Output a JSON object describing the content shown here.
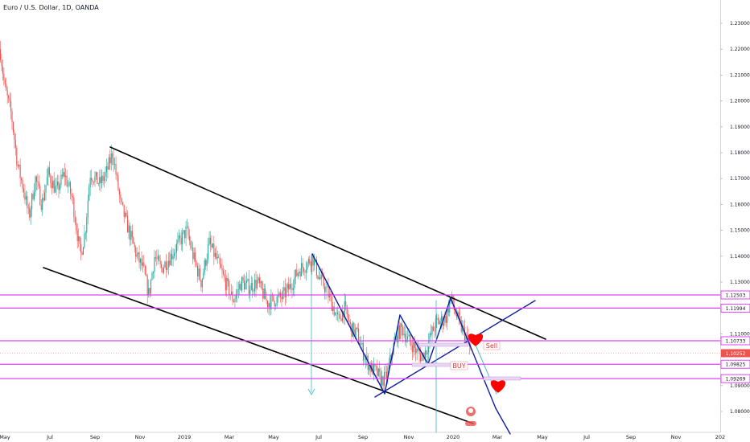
{
  "header": {
    "title": "Euro / U.S. Dollar, 1D, OANDA"
  },
  "chart_data": {
    "type": "candlestick",
    "symbol_label": "Euro / U.S. Dollar, 1D, OANDA",
    "price_axis": {
      "range": [
        1.075,
        1.235
      ],
      "ticks": [
        "1.23000",
        "1.22000",
        "1.21000",
        "1.20000",
        "1.19000",
        "1.18000",
        "1.17000",
        "1.16000",
        "1.15000",
        "1.14000",
        "1.13000",
        "1.11000",
        "1.09000",
        "1.08000"
      ],
      "tick_values": [
        1.23,
        1.22,
        1.21,
        1.2,
        1.19,
        1.18,
        1.17,
        1.16,
        1.15,
        1.14,
        1.13,
        1.11,
        1.09,
        1.08
      ]
    },
    "time_axis": {
      "labels": [
        "May",
        "Jul",
        "Sep",
        "Nov",
        "2019",
        "Mar",
        "May",
        "Jul",
        "Sep",
        "Nov",
        "2020",
        "Mar",
        "May",
        "Jul",
        "Sep",
        "Nov",
        "202"
      ]
    },
    "horizontal_lines": [
      {
        "value": 1.12503,
        "label": "1.12503",
        "color": "#e040fb"
      },
      {
        "value": 1.11994,
        "label": "1.11994",
        "color": "#e040fb"
      },
      {
        "value": 1.10733,
        "label": "1.10733",
        "color": "#e040fb"
      },
      {
        "value": 1.09825,
        "label": "1.09825",
        "color": "#e040fb"
      },
      {
        "value": 1.09269,
        "label": "1.09269",
        "color": "#e040fb"
      }
    ],
    "current_price": {
      "value": 1.10252,
      "label": "1.10252",
      "color": "#ef5350"
    },
    "annotations": {
      "sell": "Sell",
      "buy": "BUY"
    },
    "colors": {
      "up": "#26a69a",
      "down": "#ef5350",
      "level": "#e040fb",
      "trend": "#000000",
      "projection": "#0d1ea3",
      "arrow": "#4dbfc7",
      "heart": "#ff0000"
    }
  }
}
